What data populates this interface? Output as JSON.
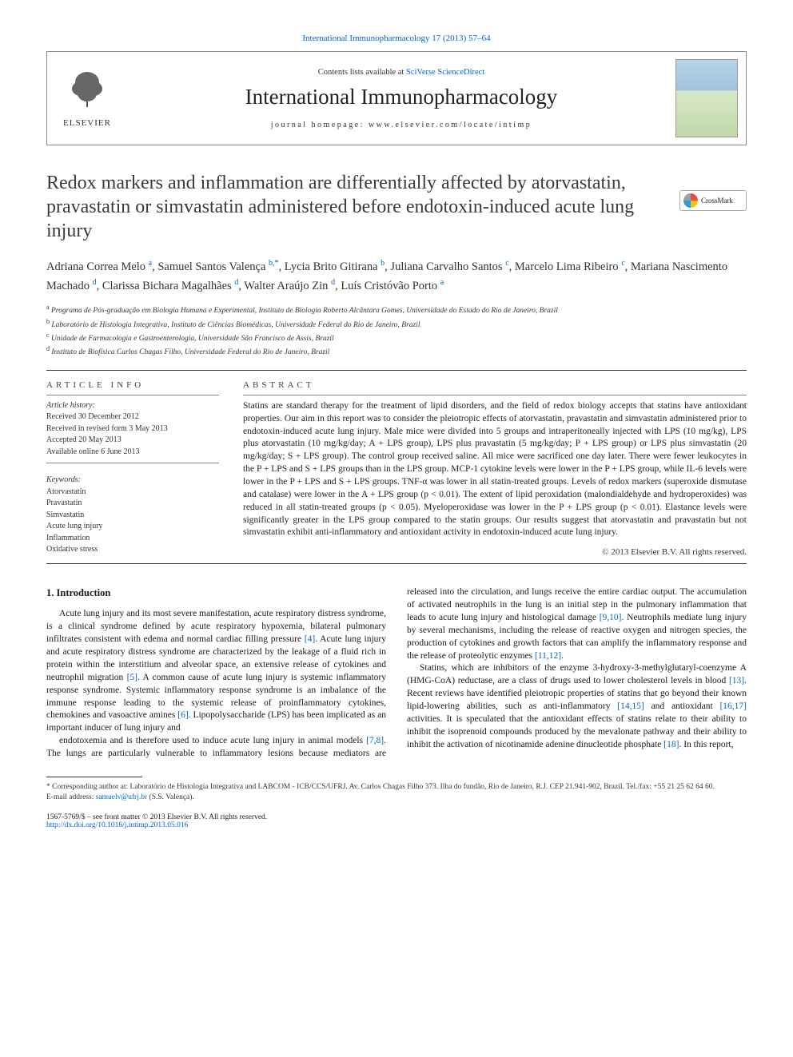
{
  "header": {
    "journal_ref_link": "International Immunopharmacology 17 (2013) 57–64",
    "contents_prefix": "Contents lists available at ",
    "contents_link": "SciVerse ScienceDirect",
    "journal_name": "International Immunopharmacology",
    "homepage_prefix": "journal homepage: ",
    "homepage_url": "www.elsevier.com/locate/intimp",
    "elsevier": "ELSEVIER",
    "crossmark": "CrossMark"
  },
  "article": {
    "title": "Redox markers and inflammation are differentially affected by atorvastatin, pravastatin or simvastatin administered before endotoxin-induced acute lung injury",
    "authors_html": "Adriana Correa Melo <sup>a</sup>, Samuel Santos Valença <sup>b,*</sup>, Lycia Brito Gitirana <sup>b</sup>, Juliana Carvalho Santos <sup>c</sup>, Marcelo Lima Ribeiro <sup>c</sup>, Mariana Nascimento Machado <sup>d</sup>, Clarissa Bichara Magalhães <sup>d</sup>, Walter Araújo Zin <sup>d</sup>, Luís Cristóvão Porto <sup>a</sup>",
    "affiliations": {
      "a": "Programa de Pós-graduação em Biologia Humana e Experimental, Instituto de Biologia Roberto Alcântara Gomes, Universidade do Estado do Rio de Janeiro, Brazil",
      "b": "Laboratório de Histologia Integrativa, Instituto de Ciências Biomédicas, Universidade Federal do Rio de Janeiro, Brazil",
      "c": "Unidade de Farmacologia e Gastroenterologia, Universidade São Francisco de Assis, Brazil",
      "d": "Instituto de Biofísica Carlos Chagas Filho, Universidade Federal do Rio de Janeiro, Brazil"
    }
  },
  "info": {
    "label": "ARTICLE INFO",
    "history_label": "Article history:",
    "received": "Received 30 December 2012",
    "revised": "Received in revised form 3 May 2013",
    "accepted": "Accepted 20 May 2013",
    "online": "Available online 6 June 2013",
    "keywords_label": "Keywords:",
    "keywords": [
      "Atorvastatin",
      "Pravastatin",
      "Simvastatin",
      "Acute lung injury",
      "Inflammation",
      "Oxidative stress"
    ]
  },
  "abstract": {
    "label": "ABSTRACT",
    "text": "Statins are standard therapy for the treatment of lipid disorders, and the field of redox biology accepts that statins have antioxidant properties. Our aim in this report was to consider the pleiotropic effects of atorvastatin, pravastatin and simvastatin administered prior to endotoxin-induced acute lung injury. Male mice were divided into 5 groups and intraperitoneally injected with LPS (10 mg/kg), LPS plus atorvastatin (10 mg/kg/day; A + LPS group), LPS plus pravastatin (5 mg/kg/day; P + LPS group) or LPS plus simvastatin (20 mg/kg/day; S + LPS group). The control group received saline. All mice were sacrificed one day later. There were fewer leukocytes in the P + LPS and S + LPS groups than in the LPS group. MCP-1 cytokine levels were lower in the P + LPS group, while IL-6 levels were lower in the P + LPS and S + LPS groups. TNF-α was lower in all statin-treated groups. Levels of redox markers (superoxide dismutase and catalase) were lower in the A + LPS group (p < 0.01). The extent of lipid peroxidation (malondialdehyde and hydroperoxides) was reduced in all statin-treated groups (p < 0.05). Myeloperoxidase was lower in the P + LPS group (p < 0.01). Elastance levels were significantly greater in the LPS group compared to the statin groups. Our results suggest that atorvastatin and pravastatin but not simvastatin exhibit anti-inflammatory and antioxidant activity in endotoxin-induced acute lung injury.",
    "copyright": "© 2013 Elsevier B.V. All rights reserved."
  },
  "body": {
    "section_number": "1.",
    "section_title": "Introduction",
    "p1": "Acute lung injury and its most severe manifestation, acute respiratory distress syndrome, is a clinical syndrome defined by acute respiratory hypoxemia, bilateral pulmonary infiltrates consistent with edema and normal cardiac filling pressure [4]. Acute lung injury and acute respiratory distress syndrome are characterized by the leakage of a fluid rich in protein within the interstitium and alveolar space, an extensive release of cytokines and neutrophil migration [5]. A common cause of acute lung injury is systemic inflammatory response syndrome. Systemic inflammatory response syndrome is an imbalance of the immune response leading to the systemic release of proinflammatory cytokines, chemokines and vasoactive amines [6]. Lipopolysaccharide (LPS) has been implicated as an important inducer of lung injury and",
    "p2": "endotoxemia and is therefore used to induce acute lung injury in animal models [7,8]. The lungs are particularly vulnerable to inflammatory lesions because mediators are released into the circulation, and lungs receive the entire cardiac output. The accumulation of activated neutrophils in the lung is an initial step in the pulmonary inflammation that leads to acute lung injury and histological damage [9,10]. Neutrophils mediate lung injury by several mechanisms, including the release of reactive oxygen and nitrogen species, the production of cytokines and growth factors that can amplify the inflammatory response and the release of proteolytic enzymes [11,12].",
    "p3": "Statins, which are inhibitors of the enzyme 3-hydroxy-3-methylglutaryl-coenzyme A (HMG-CoA) reductase, are a class of drugs used to lower cholesterol levels in blood [13]. Recent reviews have identified pleiotropic properties of statins that go beyond their known lipid-lowering abilities, such as anti-inflammatory [14,15] and antioxidant [16,17] activities. It is speculated that the antioxidant effects of statins relate to their ability to inhibit the isoprenoid compounds produced by the mevalonate pathway and their ability to inhibit the activation of nicotinamide adenine dinucleotide phosphate [18]. In this report,",
    "refs": {
      "r4": "[4]",
      "r5": "[5]",
      "r6": "[6]",
      "r7_8": "[7,8]",
      "r9_10": "[9,10]",
      "r11_12": "[11,12]",
      "r13": "[13]",
      "r14_15": "[14,15]",
      "r16_17": "[16,17]",
      "r18": "[18]"
    }
  },
  "footnotes": {
    "corresponding": "* Corresponding author at: Laboratório de Histologia Integrativa and LABCOM - ICB/CCS/UFRJ. Av. Carlos Chagas Filho 373. Ilha do fundão, Rio de Janeiro, R.J. CEP 21.941-902, Brazil. Tel./fax: +55 21 25 62 64 60.",
    "email_label": "E-mail address: ",
    "email": "samuelv@ufrj.br",
    "email_suffix": " (S.S. Valença)."
  },
  "footer": {
    "issn": "1567-5769/$ – see front matter © 2013 Elsevier B.V. All rights reserved.",
    "doi": "http://dx.doi.org/10.1016/j.intimp.2013.05.016"
  },
  "colors": {
    "link": "#0066cc",
    "text": "#1a1a1a",
    "rule": "#333333"
  }
}
